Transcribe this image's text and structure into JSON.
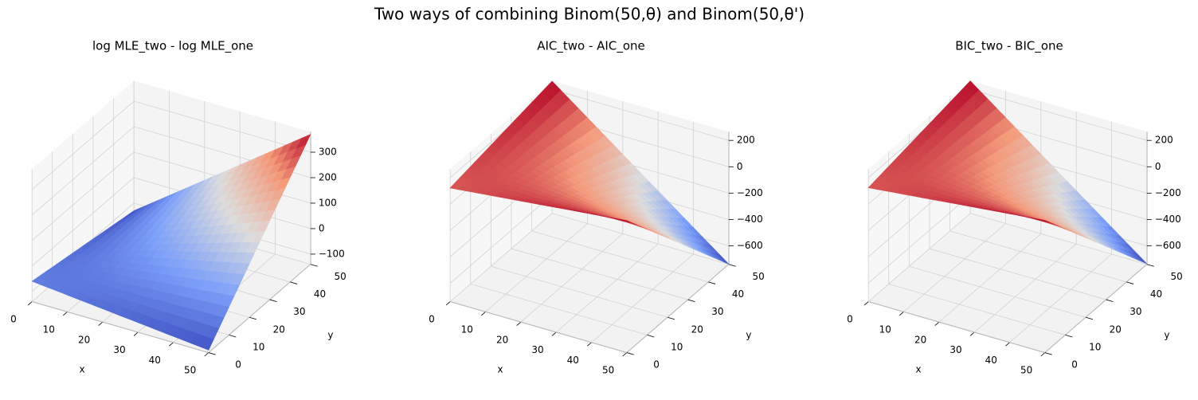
{
  "title": "Two ways of combining Binom(50,θ) and Binom(50,θ')",
  "chart_data": [
    {
      "type": "surface",
      "title": "log MLE_two - log MLE_one",
      "xlabel": "x",
      "ylabel": "y",
      "x": [
        0,
        10,
        20,
        30,
        40,
        50
      ],
      "y": [
        0,
        10,
        20,
        30,
        40,
        50
      ],
      "z": [
        [
          -60,
          -74,
          -88,
          -102,
          -116,
          -130
        ],
        [
          -74,
          -65,
          -56,
          -48,
          -39,
          -30
        ],
        [
          -88,
          -56,
          -25,
          7,
          38,
          70
        ],
        [
          -102,
          -48,
          7,
          61,
          116,
          170
        ],
        [
          -116,
          -39,
          38,
          116,
          193,
          270
        ],
        [
          -130,
          -30,
          70,
          170,
          270,
          370
        ]
      ],
      "xlim": [
        0,
        50
      ],
      "ylim": [
        0,
        50
      ],
      "zlim": [
        -140,
        380
      ],
      "xticks": [
        0,
        10,
        20,
        30,
        40,
        50
      ],
      "yticks": [
        0,
        10,
        20,
        30,
        40,
        50
      ],
      "zticks": [
        {
          "value": -100,
          "label": "−100"
        },
        0,
        100,
        200,
        300
      ],
      "colormap": "coolwarm",
      "grid": true
    },
    {
      "type": "surface",
      "title": "AIC_two - AIC_one",
      "xlabel": "x",
      "ylabel": "y",
      "x": [
        0,
        10,
        20,
        30,
        40,
        50
      ],
      "y": [
        0,
        10,
        20,
        30,
        40,
        50
      ],
      "z": [
        [
          122,
          150,
          178,
          206,
          234,
          262
        ],
        [
          150,
          132,
          114,
          98,
          80,
          62
        ],
        [
          178,
          114,
          52,
          -12,
          -74,
          -138
        ],
        [
          206,
          98,
          -12,
          -120,
          -230,
          -338
        ],
        [
          234,
          80,
          -74,
          -230,
          -384,
          -538
        ],
        [
          262,
          62,
          -138,
          -338,
          -538,
          -738
        ]
      ],
      "xlim": [
        0,
        50
      ],
      "ylim": [
        0,
        50
      ],
      "zlim": [
        -740,
        265
      ],
      "xticks": [
        0,
        10,
        20,
        30,
        40,
        50
      ],
      "yticks": [
        0,
        10,
        20,
        30,
        40,
        50
      ],
      "zticks": [
        {
          "value": -600,
          "label": "−600"
        },
        {
          "value": -400,
          "label": "−400"
        },
        {
          "value": -200,
          "label": "−200"
        },
        0,
        200
      ],
      "colormap": "coolwarm",
      "grid": true
    },
    {
      "type": "surface",
      "title": "BIC_two - BIC_one",
      "xlabel": "x",
      "ylabel": "y",
      "x": [
        0,
        10,
        20,
        30,
        40,
        50
      ],
      "y": [
        0,
        10,
        20,
        30,
        40,
        50
      ],
      "z": [
        [
          124,
          152,
          180,
          208,
          236,
          264
        ],
        [
          152,
          134,
          116,
          100,
          82,
          64
        ],
        [
          180,
          116,
          54,
          -10,
          -72,
          -136
        ],
        [
          208,
          100,
          -10,
          -118,
          -228,
          -336
        ],
        [
          236,
          82,
          -72,
          -228,
          -382,
          -536
        ],
        [
          264,
          64,
          -136,
          -336,
          -536,
          -736
        ]
      ],
      "xlim": [
        0,
        50
      ],
      "ylim": [
        0,
        50
      ],
      "zlim": [
        -740,
        265
      ],
      "xticks": [
        0,
        10,
        20,
        30,
        40,
        50
      ],
      "yticks": [
        0,
        10,
        20,
        30,
        40,
        50
      ],
      "zticks": [
        {
          "value": -600,
          "label": "−600"
        },
        {
          "value": -400,
          "label": "−400"
        },
        {
          "value": -200,
          "label": "−200"
        },
        0,
        200
      ],
      "colormap": "coolwarm",
      "grid": true
    }
  ]
}
